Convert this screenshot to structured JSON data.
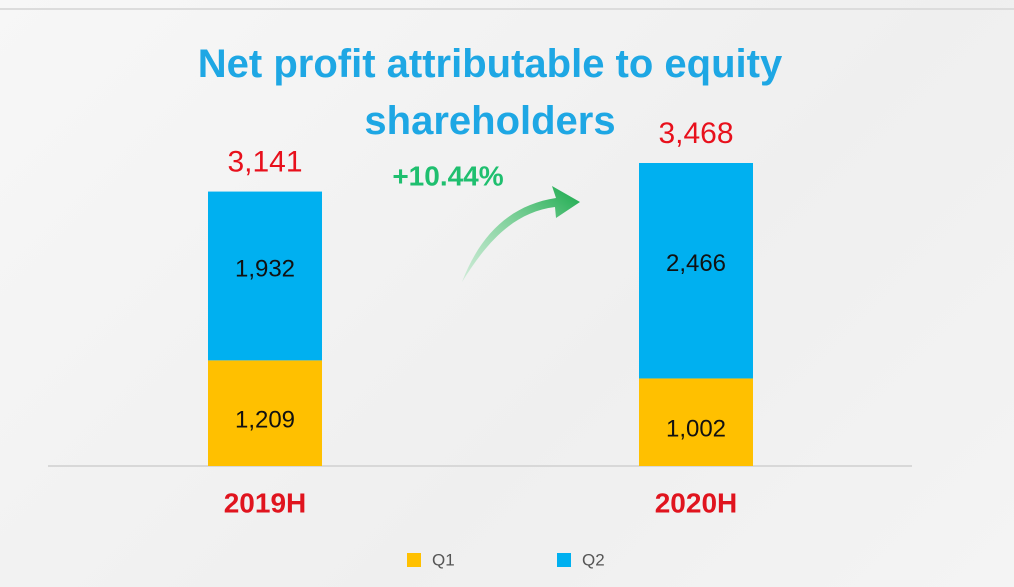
{
  "chart_data": {
    "type": "bar",
    "stacked": true,
    "title": "Net profit attributable to equity shareholders",
    "annotation": "+10.44%",
    "categories": [
      "2019H",
      "2020H"
    ],
    "series": [
      {
        "name": "Q1",
        "color": "#ffc000",
        "values": [
          1209,
          1002
        ],
        "value_labels": [
          "1,209",
          "1,002"
        ]
      },
      {
        "name": "Q2",
        "color": "#00b0f0",
        "values": [
          1932,
          2466
        ],
        "value_labels": [
          "1,932",
          "2,466"
        ]
      }
    ],
    "totals": {
      "values": [
        3141,
        3468
      ],
      "value_labels": [
        "3,141",
        "3,468"
      ]
    }
  }
}
